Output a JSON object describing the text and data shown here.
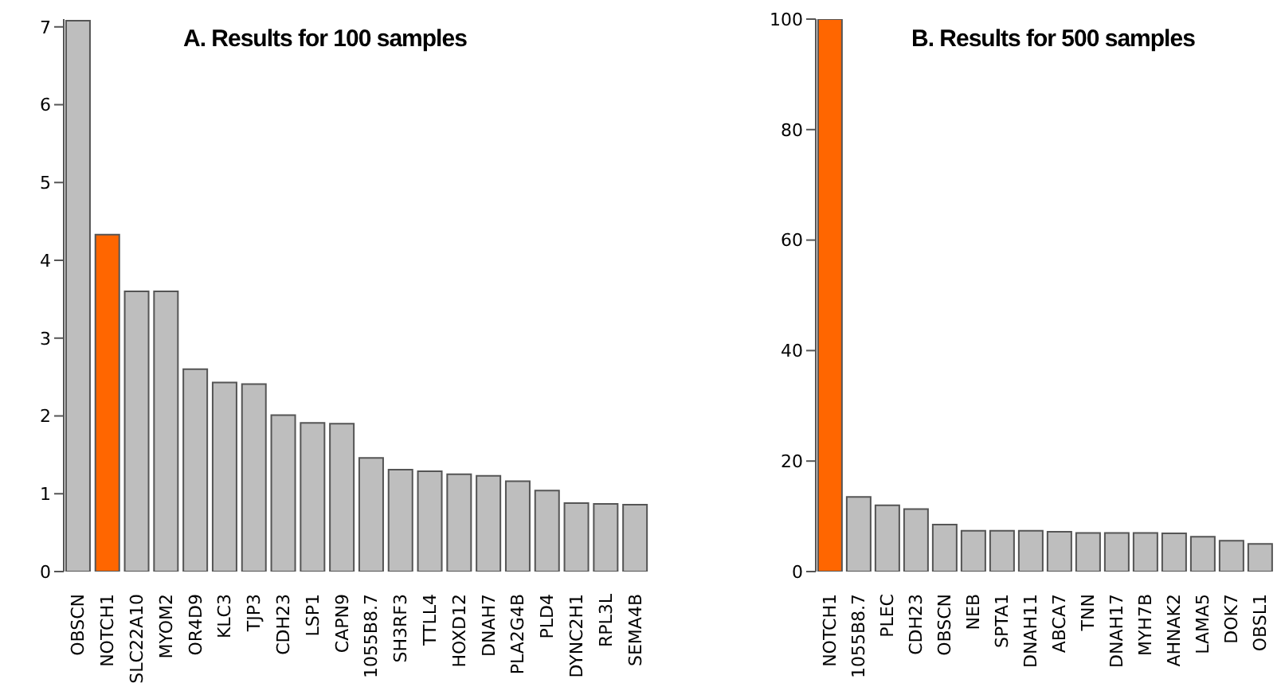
{
  "chart_data": [
    {
      "type": "bar",
      "title": "A. Results for 100 samples",
      "categories": [
        "OBSCN",
        "NOTCH1",
        "SLC22A10",
        "MYOM2",
        "OR4D9",
        "KLC3",
        "TJP3",
        "CDH23",
        "LSP1",
        "CAPN9",
        "1055B8.7",
        "SH3RF3",
        "TTLL4",
        "HOXD12",
        "DNAH7",
        "PLA2G4B",
        "PLD4",
        "DYNC2H1",
        "RPL3L",
        "SEMA4B"
      ],
      "values": [
        7.08,
        4.33,
        3.6,
        3.6,
        2.6,
        2.43,
        2.41,
        2.01,
        1.91,
        1.9,
        1.46,
        1.31,
        1.29,
        1.25,
        1.23,
        1.16,
        1.04,
        0.88,
        0.87,
        0.86
      ],
      "colors": [
        "#bebebe",
        "#ff6600",
        "#bebebe",
        "#bebebe",
        "#bebebe",
        "#bebebe",
        "#bebebe",
        "#bebebe",
        "#bebebe",
        "#bebebe",
        "#bebebe",
        "#bebebe",
        "#bebebe",
        "#bebebe",
        "#bebebe",
        "#bebebe",
        "#bebebe",
        "#bebebe",
        "#bebebe",
        "#bebebe"
      ],
      "ylim": [
        0,
        7.1
      ],
      "yticks": [
        0,
        1,
        2,
        3,
        4,
        5,
        6,
        7
      ]
    },
    {
      "type": "bar",
      "title": "B. Results for 500 samples",
      "categories": [
        "NOTCH1",
        "1055B8.7",
        "PLEC",
        "CDH23",
        "OBSCN",
        "NEB",
        "SPTA1",
        "DNAH11",
        "ABCA7",
        "TNN",
        "DNAH17",
        "MYH7B",
        "AHNAK2",
        "LAMA5",
        "DOK7",
        "OBSL1"
      ],
      "values": [
        100,
        13.5,
        12,
        11.3,
        8.5,
        7.4,
        7.4,
        7.4,
        7.2,
        7.0,
        7.0,
        7.0,
        6.9,
        6.3,
        5.6,
        5.0
      ],
      "colors": [
        "#ff6600",
        "#bebebe",
        "#bebebe",
        "#bebebe",
        "#bebebe",
        "#bebebe",
        "#bebebe",
        "#bebebe",
        "#bebebe",
        "#bebebe",
        "#bebebe",
        "#bebebe",
        "#bebebe",
        "#bebebe",
        "#bebebe",
        "#bebebe"
      ],
      "ylim": [
        0,
        100
      ],
      "yticks": [
        0,
        20,
        40,
        60,
        80,
        100
      ]
    }
  ]
}
